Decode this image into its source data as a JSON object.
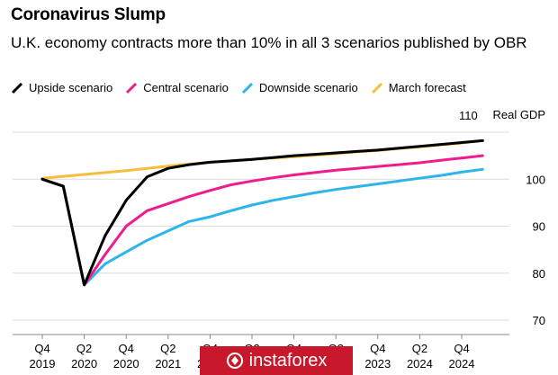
{
  "title": "Coronavirus Slump",
  "subtitle": "U.K. economy contracts more than 10% in all 3 scenarios published by OBR",
  "legend": [
    {
      "label": "Upside scenario",
      "color": "#000000"
    },
    {
      "label": "Central scenario",
      "color": "#ee1c8c"
    },
    {
      "label": "Downside scenario",
      "color": "#2cb5ea"
    },
    {
      "label": "March forecast",
      "color": "#f5be3c"
    }
  ],
  "watermark": "instaforex",
  "chart_data": {
    "type": "line",
    "ylabel": "Real GDP",
    "ylim": [
      70,
      110
    ],
    "yticks": [
      70,
      80,
      90,
      100,
      110
    ],
    "grid": true,
    "x_tick_labels": [
      [
        "Q4",
        "2019"
      ],
      [
        "Q2",
        "2020"
      ],
      [
        "Q4",
        "2020"
      ],
      [
        "Q2",
        "2021"
      ],
      [
        "Q4",
        "2021"
      ],
      [
        "Q2",
        "2022"
      ],
      [
        "Q4",
        "2022"
      ],
      [
        "Q2",
        "2023"
      ],
      [
        "Q4",
        "2023"
      ],
      [
        "Q2",
        "2024"
      ],
      [
        "Q4",
        "2024"
      ]
    ],
    "x": [
      "2019 Q4",
      "2020 Q1",
      "2020 Q2",
      "2020 Q3",
      "2020 Q4",
      "2021 Q1",
      "2021 Q2",
      "2021 Q3",
      "2021 Q4",
      "2022 Q1",
      "2022 Q2",
      "2022 Q3",
      "2022 Q4",
      "2023 Q1",
      "2023 Q2",
      "2023 Q3",
      "2023 Q4",
      "2024 Q1",
      "2024 Q2",
      "2024 Q3",
      "2024 Q4",
      "2025 Q1"
    ],
    "series": [
      {
        "name": "Upside scenario",
        "color": "#000000",
        "values": [
          100,
          98.5,
          77.5,
          88,
          95.5,
          100.5,
          102.3,
          103.1,
          103.6,
          103.9,
          104.2,
          104.6,
          105.0,
          105.3,
          105.6,
          105.9,
          106.2,
          106.6,
          107.0,
          107.4,
          107.8,
          108.2
        ]
      },
      {
        "name": "Central scenario",
        "color": "#ee1c8c",
        "values": [
          100,
          98.5,
          77.5,
          84,
          90,
          93.3,
          94.8,
          96.3,
          97.6,
          98.8,
          99.6,
          100.3,
          100.9,
          101.4,
          101.9,
          102.3,
          102.7,
          103.1,
          103.5,
          104.0,
          104.5,
          105.0
        ]
      },
      {
        "name": "Downside scenario",
        "color": "#2cb5ea",
        "values": [
          100,
          98.5,
          77.5,
          82,
          84.5,
          87,
          89,
          91,
          92,
          93.3,
          94.5,
          95.5,
          96.3,
          97.1,
          97.8,
          98.4,
          99.0,
          99.6,
          100.2,
          100.8,
          101.5,
          102.1
        ]
      },
      {
        "name": "March forecast",
        "color": "#f5be3c",
        "values": [
          100.2,
          100.6,
          101.0,
          101.4,
          101.8,
          102.3,
          102.8,
          103.2,
          103.6,
          103.9,
          104.2,
          104.5,
          104.8,
          105.1,
          105.4,
          105.8,
          106.1,
          106.5,
          106.9,
          107.3,
          107.7,
          108.2
        ]
      }
    ]
  }
}
